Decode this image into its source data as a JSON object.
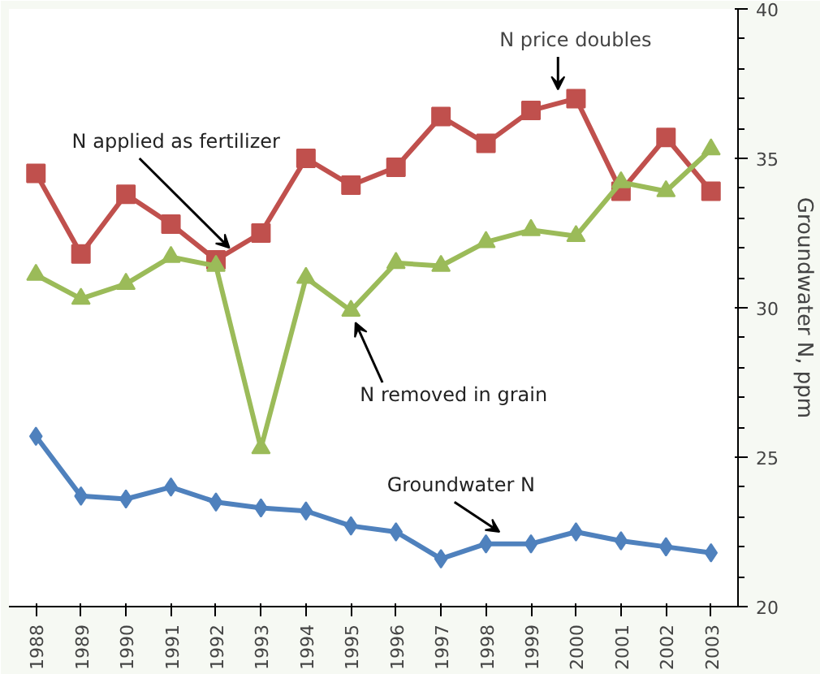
{
  "chart_data": {
    "type": "line",
    "ylabel": "Groundwater N, ppm",
    "categories": [
      "1988",
      "1989",
      "1990",
      "1991",
      "1992",
      "1993",
      "1994",
      "1995",
      "1996",
      "1997",
      "1998",
      "1999",
      "2000",
      "2001",
      "2002",
      "2003"
    ],
    "ylim": [
      20,
      40
    ],
    "yticks": [
      20,
      25,
      30,
      35,
      40
    ],
    "grid": false,
    "series": [
      {
        "name": "N applied as fertilizer",
        "color": "#c0504d",
        "marker": "square",
        "values": [
          34.5,
          31.8,
          33.8,
          32.8,
          31.6,
          32.5,
          35.0,
          34.1,
          34.7,
          36.4,
          35.5,
          36.6,
          37.0,
          33.9,
          35.7,
          33.9
        ]
      },
      {
        "name": "N removed in grain",
        "color": "#9bbb59",
        "marker": "triangle",
        "values": [
          31.1,
          30.3,
          30.8,
          31.7,
          31.4,
          25.3,
          31.0,
          29.9,
          31.5,
          31.4,
          32.2,
          32.6,
          32.4,
          34.2,
          33.9,
          35.3
        ]
      },
      {
        "name": "Groundwater N",
        "color": "#4f81bd",
        "marker": "diamond",
        "values": [
          25.7,
          23.7,
          23.6,
          24.0,
          23.5,
          23.3,
          23.2,
          22.7,
          22.5,
          21.6,
          22.1,
          22.1,
          22.5,
          22.2,
          22.0,
          21.8
        ]
      }
    ],
    "annotations": [
      "N  price doubles"
    ]
  }
}
